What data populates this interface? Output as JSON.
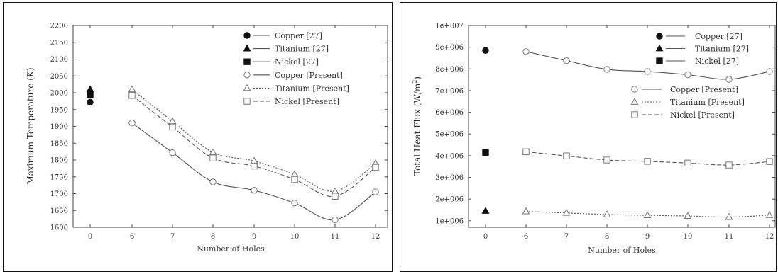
{
  "chart_data": [
    {
      "type": "line",
      "title": "",
      "xlabel": "Number of Holes",
      "ylabel": "Maximum Temperature (K)",
      "x_ticks": [
        "0",
        "6",
        "7",
        "8",
        "9",
        "10",
        "11",
        "12"
      ],
      "y_ticks": [
        "1600",
        "1650",
        "1700",
        "1750",
        "1800",
        "1850",
        "1900",
        "1950",
        "2000",
        "2050",
        "2100",
        "2150",
        "2200"
      ],
      "ylim": [
        1600,
        2200
      ],
      "grid": false,
      "legend_position": "top-right",
      "series": [
        {
          "name": "Copper [27]",
          "marker": "filled-circle",
          "line": "none",
          "points": [
            [
              0,
              1972
            ]
          ]
        },
        {
          "name": "Titanium [27]",
          "marker": "filled-triangle",
          "line": "none",
          "points": [
            [
              0,
              2010
            ]
          ]
        },
        {
          "name": "Nickel [27]",
          "marker": "filled-square",
          "line": "none",
          "points": [
            [
              0,
              1995
            ]
          ]
        },
        {
          "name": "Copper [Present]",
          "marker": "open-circle",
          "line": "solid",
          "points": [
            [
              6,
              1910
            ],
            [
              7,
              1822
            ],
            [
              8,
              1735
            ],
            [
              9,
              1710
            ],
            [
              10,
              1672
            ],
            [
              11,
              1622
            ],
            [
              12,
              1705
            ]
          ]
        },
        {
          "name": "Titanium [Present]",
          "marker": "open-triangle",
          "line": "dotted",
          "points": [
            [
              6,
              2010
            ],
            [
              7,
              1915
            ],
            [
              8,
              1823
            ],
            [
              9,
              1797
            ],
            [
              10,
              1757
            ],
            [
              11,
              1707
            ],
            [
              12,
              1790
            ]
          ]
        },
        {
          "name": "Nickel [Present]",
          "marker": "open-square",
          "line": "dashed",
          "points": [
            [
              6,
              1992
            ],
            [
              7,
              1898
            ],
            [
              8,
              1806
            ],
            [
              9,
              1782
            ],
            [
              10,
              1742
            ],
            [
              11,
              1692
            ],
            [
              12,
              1778
            ]
          ]
        }
      ]
    },
    {
      "type": "line",
      "title": "",
      "xlabel": "Number of Holes",
      "ylabel_main": "Total Heat Flux (W/m",
      "ylabel_sup": "2",
      "ylabel_end": ")",
      "x_ticks": [
        "0",
        "6",
        "7",
        "8",
        "9",
        "10",
        "11",
        "12"
      ],
      "y_ticks": [
        "1e+006",
        "2e+006",
        "3e+006",
        "4e+006",
        "5e+006",
        "6e+006",
        "7e+006",
        "8e+006",
        "9e+006",
        "1e+007"
      ],
      "ylim": [
        700000,
        10000000
      ],
      "grid": false,
      "legend_position": "top-right",
      "series": [
        {
          "name": "Copper [27]",
          "marker": "filled-circle",
          "line": "none",
          "points": [
            [
              0,
              8850000
            ]
          ]
        },
        {
          "name": "Titanium [27]",
          "marker": "filled-triangle",
          "line": "none",
          "points": [
            [
              0,
              1450000
            ]
          ]
        },
        {
          "name": "Nickel [27]",
          "marker": "filled-square",
          "line": "none",
          "points": [
            [
              0,
              4150000
            ]
          ]
        },
        {
          "name": "Copper [Present]",
          "marker": "open-circle",
          "line": "solid",
          "points": [
            [
              6,
              8800000
            ],
            [
              7,
              8380000
            ],
            [
              8,
              7980000
            ],
            [
              9,
              7880000
            ],
            [
              10,
              7730000
            ],
            [
              11,
              7520000
            ],
            [
              12,
              7880000
            ]
          ]
        },
        {
          "name": "Titanium [Present]",
          "marker": "open-triangle",
          "line": "dotted",
          "points": [
            [
              6,
              1430000
            ],
            [
              7,
              1360000
            ],
            [
              8,
              1290000
            ],
            [
              9,
              1250000
            ],
            [
              10,
              1220000
            ],
            [
              11,
              1170000
            ],
            [
              12,
              1260000
            ]
          ]
        },
        {
          "name": "Nickel [Present]",
          "marker": "open-square",
          "line": "dashed",
          "points": [
            [
              6,
              4180000
            ],
            [
              7,
              3990000
            ],
            [
              8,
              3800000
            ],
            [
              9,
              3740000
            ],
            [
              10,
              3660000
            ],
            [
              11,
              3570000
            ],
            [
              12,
              3730000
            ]
          ]
        }
      ]
    }
  ]
}
